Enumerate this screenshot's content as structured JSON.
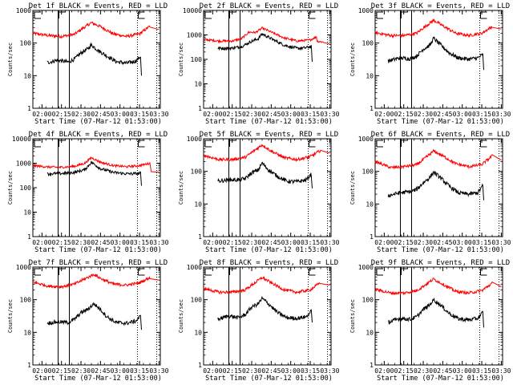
{
  "chart_data": {
    "type": "line",
    "layout": "3x3 grid",
    "common": {
      "xlabel": "Start Time (07-Mar-12 01:53:00)",
      "ylabel": "Counts/sec",
      "yscale": "log",
      "x_tick_labels": [
        "02:00",
        "02:15",
        "02:30",
        "02:45",
        "03:00",
        "03:15",
        "03:30"
      ],
      "x_tick_minutes": [
        0,
        15,
        30,
        45,
        60,
        75,
        90
      ],
      "xlim_minutes": [
        -7,
        91
      ],
      "legend_text": "BLACK = Events, RED = LLD",
      "series_colors": {
        "events": "#000000",
        "lld": "#ff0000"
      },
      "vertical_markers": [
        {
          "minute": 12.3,
          "style": "solid",
          "label": "F"
        },
        {
          "minute": 21,
          "style": "solid",
          "label": ""
        },
        {
          "minute": 73,
          "style": "dotted",
          "label": "E"
        },
        {
          "minute": 88,
          "style": "dotted",
          "label": ""
        }
      ],
      "start_marker": {
        "minute": -7,
        "label": "E"
      }
    },
    "panels": [
      {
        "title": "Det 1f BLACK = Events, RED = LLD",
        "ylim": [
          1,
          1000
        ],
        "y_tick_labels": [
          "1",
          "10",
          "100",
          "1000"
        ],
        "lld": {
          "x": [
            -7,
            5,
            15,
            25,
            30,
            38,
            45,
            55,
            65,
            75,
            83,
            90
          ],
          "y": [
            200,
            170,
            160,
            185,
            260,
            420,
            320,
            190,
            160,
            190,
            330,
            260
          ]
        },
        "events": {
          "x": [
            4,
            12,
            20,
            25,
            30,
            35,
            38,
            43,
            50,
            57,
            65,
            72,
            76,
            76.5
          ],
          "y": [
            25,
            30,
            26,
            32,
            50,
            65,
            88,
            60,
            40,
            27,
            24,
            28,
            40,
            10
          ]
        }
      },
      {
        "title": "Det 2f BLACK = Events, RED = LLD",
        "ylim": [
          1,
          10000
        ],
        "y_tick_labels": [
          "1",
          "10",
          "100",
          "1000",
          "10000"
        ],
        "lld": {
          "x": [
            -7,
            5,
            15,
            22,
            28,
            33,
            38,
            45,
            55,
            65,
            75,
            80,
            80.2,
            86,
            90
          ],
          "y": [
            650,
            560,
            560,
            700,
            1300,
            1250,
            1900,
            1300,
            750,
            560,
            620,
            850,
            550,
            500,
            430
          ]
        },
        "events": {
          "x": [
            4,
            15,
            22,
            30,
            35,
            38,
            45,
            55,
            65,
            72,
            76,
            76.5
          ],
          "y": [
            280,
            290,
            330,
            550,
            700,
            1100,
            700,
            380,
            280,
            300,
            340,
            80
          ]
        }
      },
      {
        "title": "Det 3f BLACK = Events, RED = LLD",
        "ylim": [
          1,
          1000
        ],
        "y_tick_labels": [
          "1",
          "10",
          "100",
          "1000"
        ],
        "lld": {
          "x": [
            -7,
            5,
            15,
            25,
            30,
            38,
            45,
            55,
            65,
            75,
            83,
            90
          ],
          "y": [
            210,
            170,
            170,
            200,
            290,
            500,
            340,
            200,
            170,
            200,
            320,
            270
          ]
        },
        "events": {
          "x": [
            3,
            12,
            20,
            25,
            30,
            35,
            38,
            43,
            50,
            57,
            65,
            72,
            76,
            76.5
          ],
          "y": [
            28,
            35,
            33,
            40,
            65,
            85,
            140,
            90,
            50,
            35,
            32,
            35,
            45,
            15
          ]
        }
      },
      {
        "title": "Det 4f BLACK = Events, RED = LLD",
        "ylim": [
          1,
          10000
        ],
        "y_tick_labels": [
          "1",
          "10",
          "100",
          "1000",
          "10000"
        ],
        "lld": {
          "x": [
            -7,
            5,
            15,
            25,
            33,
            38,
            45,
            55,
            65,
            75,
            83,
            84,
            90
          ],
          "y": [
            800,
            700,
            680,
            750,
            1000,
            1700,
            1100,
            800,
            720,
            800,
            1000,
            500,
            430
          ]
        },
        "events": {
          "x": [
            4,
            15,
            25,
            33,
            38,
            45,
            55,
            65,
            75,
            76,
            76.5
          ],
          "y": [
            370,
            380,
            420,
            550,
            1100,
            600,
            420,
            370,
            380,
            420,
            120
          ]
        }
      },
      {
        "title": "Det 5f BLACK = Events, RED = LLD",
        "ylim": [
          1,
          1000
        ],
        "y_tick_labels": [
          "1",
          "10",
          "100",
          "1000"
        ],
        "lld": {
          "x": [
            -7,
            5,
            15,
            25,
            30,
            38,
            45,
            55,
            65,
            75,
            83,
            90
          ],
          "y": [
            310,
            230,
            230,
            270,
            380,
            650,
            420,
            260,
            230,
            280,
            440,
            360
          ]
        },
        "events": {
          "x": [
            4,
            12,
            20,
            25,
            30,
            35,
            38,
            43,
            50,
            57,
            65,
            72,
            76,
            76.5
          ],
          "y": [
            50,
            55,
            55,
            60,
            90,
            110,
            180,
            110,
            70,
            50,
            48,
            55,
            85,
            30
          ]
        }
      },
      {
        "title": "Det 6f BLACK = Events, RED = LLD",
        "ylim": [
          1,
          1000
        ],
        "y_tick_labels": [
          "1",
          "10",
          "100",
          "1000"
        ],
        "lld": {
          "x": [
            -7,
            5,
            15,
            25,
            30,
            38,
            45,
            55,
            65,
            75,
            83,
            90
          ],
          "y": [
            200,
            130,
            140,
            160,
            230,
            420,
            300,
            170,
            140,
            160,
            300,
            220
          ]
        },
        "events": {
          "x": [
            3,
            12,
            20,
            25,
            30,
            35,
            38,
            43,
            50,
            57,
            65,
            72,
            76,
            76.5
          ],
          "y": [
            18,
            22,
            24,
            28,
            45,
            65,
            95,
            65,
            35,
            22,
            20,
            22,
            38,
            13
          ]
        }
      },
      {
        "title": "Det 7f BLACK = Events, RED = LLD",
        "ylim": [
          1,
          1000
        ],
        "y_tick_labels": [
          "1",
          "10",
          "100",
          "1000"
        ],
        "lld": {
          "x": [
            -7,
            5,
            15,
            25,
            30,
            40,
            45,
            55,
            65,
            75,
            83,
            90
          ],
          "y": [
            350,
            260,
            250,
            300,
            380,
            600,
            450,
            300,
            280,
            330,
            480,
            400
          ]
        },
        "events": {
          "x": [
            4,
            12,
            20,
            25,
            30,
            35,
            40,
            45,
            50,
            57,
            65,
            72,
            76,
            76.5
          ],
          "y": [
            19,
            21,
            20,
            25,
            40,
            50,
            75,
            50,
            30,
            20,
            19,
            22,
            32,
            12
          ]
        }
      },
      {
        "title": "Det 8f BLACK = Events, RED = LLD",
        "ylim": [
          1,
          1000
        ],
        "y_tick_labels": [
          "1",
          "10",
          "100",
          "1000"
        ],
        "lld": {
          "x": [
            -7,
            5,
            15,
            25,
            30,
            38,
            45,
            55,
            65,
            75,
            83,
            90
          ],
          "y": [
            220,
            170,
            170,
            200,
            280,
            480,
            330,
            200,
            170,
            200,
            340,
            280
          ]
        },
        "events": {
          "x": [
            4,
            12,
            20,
            25,
            30,
            35,
            38,
            43,
            50,
            57,
            65,
            72,
            76,
            76.5
          ],
          "y": [
            25,
            32,
            28,
            35,
            60,
            75,
            110,
            75,
            40,
            28,
            27,
            30,
            45,
            20
          ]
        }
      },
      {
        "title": "Det 9f BLACK = Events, RED = LLD",
        "ylim": [
          1,
          1000
        ],
        "y_tick_labels": [
          "1",
          "10",
          "100",
          "1000"
        ],
        "lld": {
          "x": [
            -7,
            5,
            15,
            25,
            30,
            38,
            45,
            55,
            65,
            75,
            83,
            90
          ],
          "y": [
            210,
            160,
            160,
            190,
            260,
            430,
            300,
            180,
            160,
            190,
            320,
            250
          ]
        },
        "events": {
          "x": [
            3,
            12,
            20,
            25,
            30,
            35,
            38,
            43,
            50,
            57,
            65,
            72,
            76,
            76.5
          ],
          "y": [
            20,
            27,
            25,
            30,
            50,
            70,
            100,
            70,
            38,
            26,
            24,
            27,
            42,
            14
          ]
        }
      }
    ]
  }
}
